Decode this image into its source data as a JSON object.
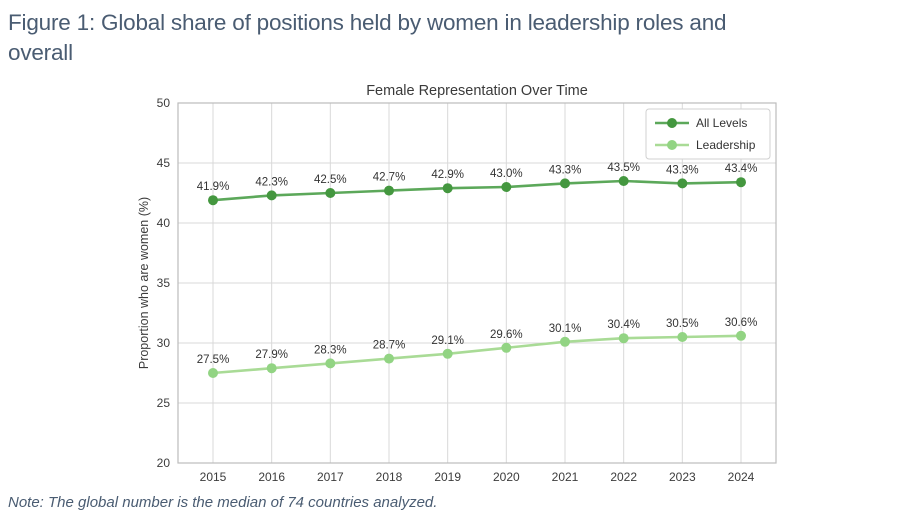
{
  "page": {
    "heading": "Figure 1: Global share of positions held by women in leadership roles and\noverall",
    "note": "Note: The global number is the median of 74 countries analyzed.",
    "heading_color": "#4a5c72",
    "background_color": "#ffffff"
  },
  "chart_data": {
    "type": "line",
    "title": "Female Representation Over Time",
    "xlabel": "",
    "ylabel": "Proportion who are women (%)",
    "x": [
      2015,
      2016,
      2017,
      2018,
      2019,
      2020,
      2021,
      2022,
      2023,
      2024
    ],
    "ylim": [
      20,
      50
    ],
    "yticks": [
      20,
      25,
      30,
      35,
      40,
      45,
      50
    ],
    "grid": true,
    "legend_position": "upper right",
    "series": [
      {
        "name": "All Levels",
        "values": [
          41.9,
          42.3,
          42.5,
          42.7,
          42.9,
          43.0,
          43.3,
          43.5,
          43.3,
          43.4
        ],
        "labels": [
          "41.9%",
          "42.3%",
          "42.5%",
          "42.7%",
          "42.9%",
          "43.0%",
          "43.3%",
          "43.5%",
          "43.3%",
          "43.4%"
        ],
        "line_color": "#5ca85a",
        "marker_color": "#44973f"
      },
      {
        "name": "Leadership",
        "values": [
          27.5,
          27.9,
          28.3,
          28.7,
          29.1,
          29.6,
          30.1,
          30.4,
          30.5,
          30.6
        ],
        "labels": [
          "27.5%",
          "27.9%",
          "28.3%",
          "28.7%",
          "29.1%",
          "29.6%",
          "30.1%",
          "30.4%",
          "30.5%",
          "30.6%"
        ],
        "line_color": "#a9db96",
        "marker_color": "#92d483"
      }
    ],
    "style": {
      "grid_color": "#d9d9d9",
      "border_color": "#bcbcbc",
      "tick_label_color": "#3c3c3c",
      "title_color": "#3a3a3a",
      "data_label_color": "#333333",
      "legend_border_color": "#d0d0d0",
      "legend_text_color": "#333333"
    }
  }
}
